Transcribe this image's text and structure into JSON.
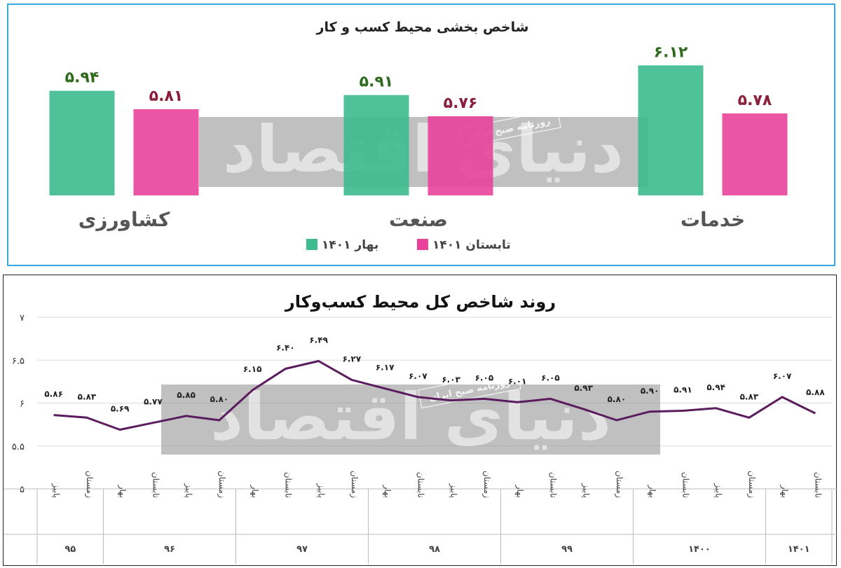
{
  "chart_data": [
    {
      "type": "bar",
      "title": "شاخص بخشی محیط کسب و کار",
      "categories": [
        "کشاورزی",
        "صنعت",
        "خدمات"
      ],
      "series": [
        {
          "name": "بهار ۱۴۰۱",
          "values": [
            5.94,
            5.91,
            6.12
          ],
          "labels": [
            "۵.۹۴",
            "۵.۹۱",
            "۶.۱۲"
          ],
          "color": "#3dbb8f"
        },
        {
          "name": "تابستان ۱۴۰۱",
          "values": [
            5.81,
            5.76,
            5.78
          ],
          "labels": [
            "۵.۸۱",
            "۵.۷۶",
            "۵.۷۸"
          ],
          "color": "#e8429a"
        }
      ],
      "label_colors": [
        "#2f6b1e",
        "#8a1f3c"
      ],
      "legend": "bottom-center",
      "ylim": [
        5.2,
        6.3
      ]
    },
    {
      "type": "line",
      "title": "روند شاخص کل محیط کسب‌وکار",
      "yticks": [
        "۷",
        "۶.۵",
        "۶",
        "۵.۵",
        "۵"
      ],
      "ytick_values": [
        7,
        6.5,
        6,
        5.5,
        5
      ],
      "ylim": [
        5,
        7
      ],
      "grid": true,
      "color": "#5b1c5e",
      "x": [
        "پاییز",
        "زمستان",
        "بهار",
        "تابستان",
        "پاییز",
        "زمستان",
        "بهار",
        "تابستان",
        "پاییز",
        "زمستان",
        "بهار",
        "تابستان",
        "پاییز",
        "زمستان",
        "بهار",
        "تابستان",
        "پاییز",
        "زمستان",
        "بهار",
        "تابستان",
        "پاییز",
        "زمستان",
        "بهار",
        "تابستان"
      ],
      "values": [
        5.86,
        5.83,
        5.69,
        5.77,
        5.85,
        5.8,
        6.15,
        6.4,
        6.49,
        6.27,
        6.17,
        6.07,
        6.03,
        6.05,
        6.01,
        6.05,
        5.93,
        5.8,
        5.9,
        5.91,
        5.94,
        5.83,
        6.07,
        5.88
      ],
      "value_labels": [
        "۵.۸۶",
        "۵.۸۳",
        "۵.۶۹",
        "۵.۷۷",
        "۵.۸۵",
        "۵.۸۰",
        "۶.۱۵",
        "۶.۴۰",
        "۶.۴۹",
        "۶.۲۷",
        "۶.۱۷",
        "۶.۰۷",
        "۶.۰۳",
        "۶.۰۵",
        "۶.۰۱",
        "۶.۰۵",
        "۵.۹۳",
        "۵.۸۰",
        "۵.۹۰",
        "۵.۹۱",
        "۵.۹۴",
        "۵.۸۳",
        "۶.۰۷",
        "۵.۸۸"
      ],
      "groups": [
        {
          "label": "۹۵",
          "count": 2
        },
        {
          "label": "۹۶",
          "count": 4
        },
        {
          "label": "۹۷",
          "count": 4
        },
        {
          "label": "۹۸",
          "count": 4
        },
        {
          "label": "۹۹",
          "count": 4
        },
        {
          "label": "۱۴۰۰",
          "count": 4
        },
        {
          "label": "۱۴۰۱",
          "count": 2
        }
      ]
    }
  ],
  "watermark": {
    "logo_text": "دنیای اقتصاد",
    "tag_text": "روزنامه صبح ایران"
  }
}
